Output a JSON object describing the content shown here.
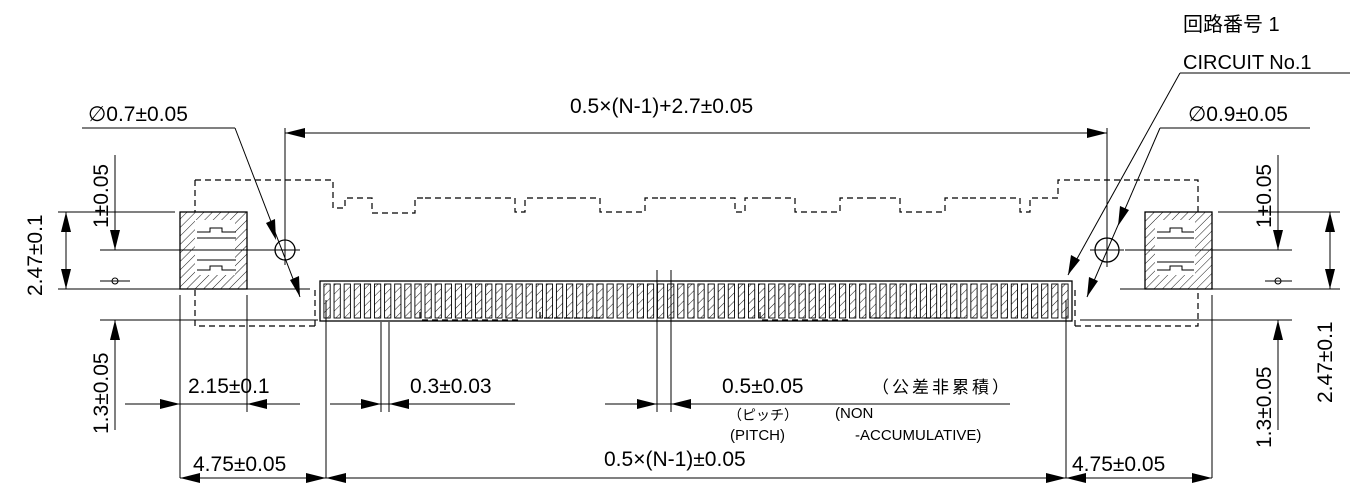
{
  "labels": {
    "circuit_jp": "回路番号 1",
    "circuit_en": "CIRCUIT No.1",
    "hole_left": "∅0.7±0.05",
    "hole_right": "∅0.9±0.05",
    "overall_width": "0.5×(N-1)+2.7±0.05",
    "left_vertical_total": "2.47±0.1",
    "left_vertical_top": "1±0.05",
    "left_vertical_bottom": "1.3±0.05",
    "right_vertical_top": "1±0.05",
    "right_vertical_bottom": "1.3±0.05",
    "right_vertical_total": "2.47±0.1",
    "pad_width": "2.15±0.1",
    "contact_width": "0.3±0.03",
    "pitch_value": "0.5±0.05",
    "pitch_jp": "（ピッチ）",
    "pitch_en": "(PITCH)",
    "non_accum_jp": "（公差非累積）",
    "non_line1": "(NON",
    "non_line2": "-ACCUMULATIVE)",
    "span": "0.5×(N-1)±0.05",
    "end_left": "4.75±0.05",
    "end_right": "4.75±0.05"
  },
  "colors": {
    "line": "#000000",
    "background": "#ffffff"
  },
  "contact_count": 74
}
